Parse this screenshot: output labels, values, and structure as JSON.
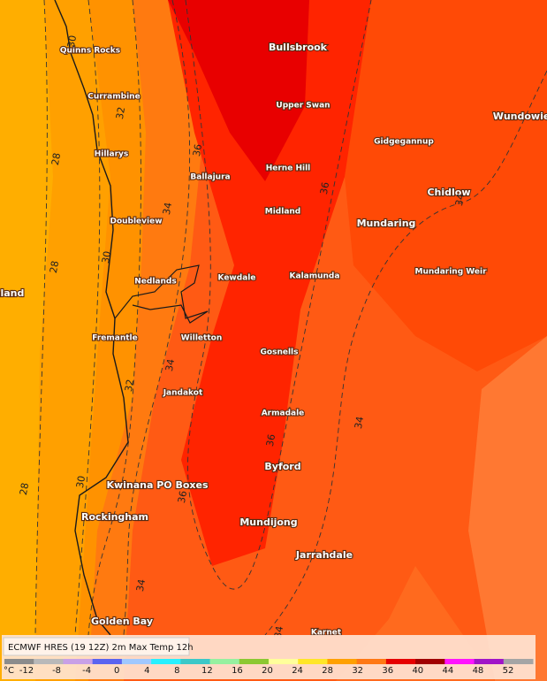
{
  "map": {
    "places": [
      "Quinns Rocks",
      "Currambine",
      "Hillarys",
      "Doubleview",
      "Nedlands",
      "Fremantle",
      "Willetton",
      "Jandakot",
      "Kwinana PO Boxes",
      "Rockingham",
      "Golden Bay",
      "Bullsbrook",
      "Upper Swan",
      "Gidgegannup",
      "Wundowie",
      "Herne Hill",
      "Ballajura",
      "Midland",
      "Chidlow",
      "Mundaring",
      "Mundaring Weir",
      "Kewdale",
      "Kalamunda",
      "Gosnells",
      "Armadale",
      "Byford",
      "Mundijong",
      "Jarrahdale",
      "Karnet",
      "nland"
    ],
    "contour_labels": [
      30,
      32,
      28,
      36,
      34,
      28,
      30,
      36,
      34,
      34,
      32,
      34,
      36,
      28,
      30,
      36,
      34,
      34
    ]
  },
  "legend": {
    "title": "ECMWF HRES (19 12Z) 2m Max Temp 12h",
    "unit": "°C",
    "ticks": [
      -12,
      -8,
      -4,
      0,
      4,
      8,
      12,
      16,
      20,
      24,
      28,
      32,
      36,
      40,
      44,
      48,
      52
    ],
    "colors": [
      "#8c8c8c",
      "#b9b9b9",
      "#c8a0e6",
      "#5a64f0",
      "#a0c8ff",
      "#28f0ff",
      "#3cc8c8",
      "#96f0a0",
      "#8cc832",
      "#ffff9b",
      "#ffe628",
      "#ffa000",
      "#ff7814",
      "#e60000",
      "#a00000",
      "#ff14ff",
      "#a014c8",
      "#a5a5a5"
    ]
  }
}
